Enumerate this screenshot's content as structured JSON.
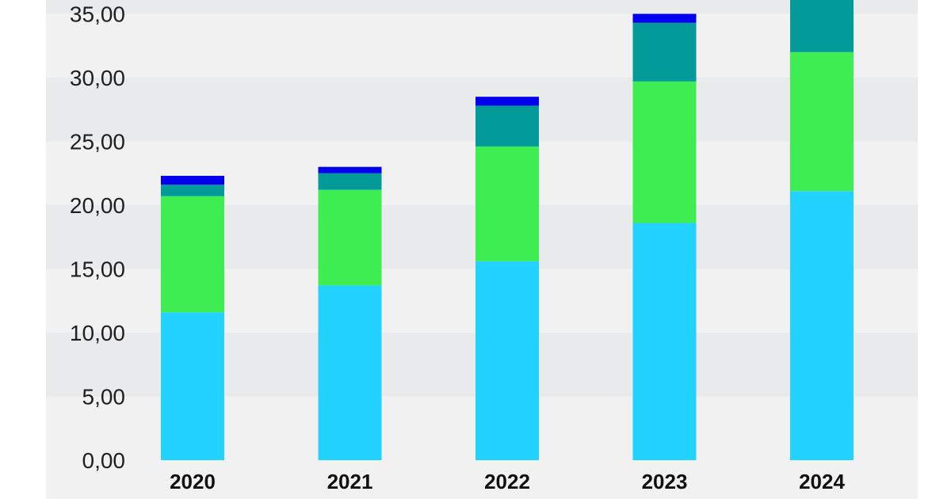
{
  "chart_data": {
    "type": "bar",
    "stacked": true,
    "categories": [
      "2020",
      "2021",
      "2022",
      "2023",
      "2024"
    ],
    "series": [
      {
        "color": "#22d3ff",
        "values": [
          11.6,
          13.7,
          15.6,
          18.6,
          21.1
        ]
      },
      {
        "color": "#3ded52",
        "values": [
          9.1,
          7.5,
          9.0,
          11.1,
          10.9
        ]
      },
      {
        "color": "#039b99",
        "values": [
          0.9,
          1.3,
          3.2,
          4.6,
          5.0
        ]
      },
      {
        "color": "#0000ee",
        "values": [
          0.7,
          0.5,
          0.7,
          0.7,
          0.0
        ]
      }
    ],
    "yticks": [
      "0,00",
      "5,00",
      "10,00",
      "15,00",
      "20,00",
      "25,00",
      "30,00",
      "35,00"
    ],
    "ylim": [
      0,
      36.3
    ],
    "grid": true,
    "legend": "none",
    "background_colors": [
      "#e9eaec",
      "#f1f1f2"
    ]
  }
}
